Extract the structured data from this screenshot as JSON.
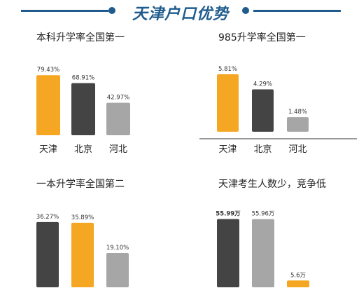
{
  "header": {
    "title": "天津户口优势"
  },
  "colors": {
    "accent": "#1f5b8c",
    "orange": "#f5a623",
    "dark": "#444444",
    "gray": "#a6a6a6"
  },
  "chart_data": [
    {
      "type": "bar",
      "title": "本科升学率全国第一",
      "categories": [
        "天津",
        "北京",
        "河北"
      ],
      "values": [
        79.43,
        68.91,
        42.97
      ],
      "labels": [
        "79.43%",
        "68.91%",
        "42.97%"
      ],
      "bar_colors": [
        "orange",
        "dark",
        "gray"
      ],
      "ylim": [
        0,
        100
      ]
    },
    {
      "type": "bar",
      "title": "985升学率全国第一",
      "categories": [
        "天津",
        "北京",
        "河北"
      ],
      "values": [
        5.81,
        4.29,
        1.48
      ],
      "labels": [
        "5.81%",
        "4.29%",
        "1.48%"
      ],
      "bar_colors": [
        "orange",
        "dark",
        "gray"
      ],
      "ylim": [
        0,
        7.3
      ]
    },
    {
      "type": "bar",
      "title": "一本升学率全国第二",
      "categories": [
        "",
        "",
        ""
      ],
      "values": [
        36.27,
        35.89,
        19.1
      ],
      "labels": [
        "36.27%",
        "35.89%",
        "19.10%"
      ],
      "bar_colors": [
        "dark",
        "orange",
        "gray"
      ],
      "ylim": [
        0,
        44
      ]
    },
    {
      "type": "bar",
      "title": "天津考生人数少，竞争低",
      "categories": [
        "",
        "",
        ""
      ],
      "values": [
        55.99,
        55.96,
        5.6
      ],
      "labels": [
        "55.99万",
        "55.96万",
        "5.6万"
      ],
      "bar_colors": [
        "dark",
        "gray",
        "orange"
      ],
      "ylim": [
        0,
        65
      ]
    }
  ]
}
